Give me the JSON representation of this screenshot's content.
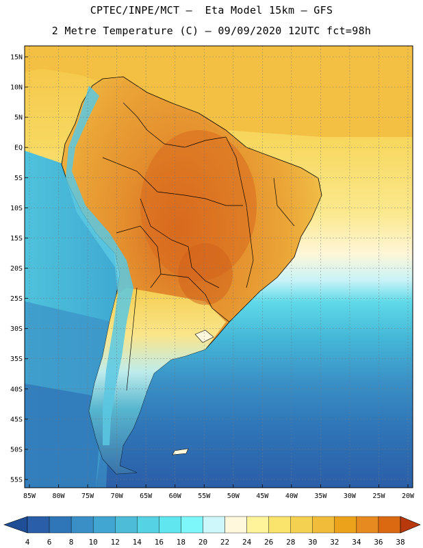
{
  "header": {
    "line1": "CPTEC/INPE/MCT –  Eta Model 15km – GFS",
    "line2": "2 Metre Temperature (C) – 09/09/2020 12UTC fct=98h"
  },
  "map": {
    "lat_labels": [
      "15N",
      "10N",
      "5N",
      "EQ",
      "5S",
      "10S",
      "15S",
      "20S",
      "25S",
      "30S",
      "35S",
      "40S",
      "45S",
      "50S",
      "55S"
    ],
    "lon_labels": [
      "85W",
      "80W",
      "75W",
      "70W",
      "65W",
      "60W",
      "55W",
      "50W",
      "45W",
      "40W",
      "35W",
      "30W",
      "25W",
      "20W"
    ],
    "colors": {
      "ocean_cold": "#2f6fb0",
      "ocean_mid": "#4fb6d6",
      "ocean_warm": "#f0d25a",
      "land_hot": "#e08a2c",
      "land_very_hot": "#d66f22",
      "andes": "#58c4e0"
    }
  },
  "colorbar": {
    "labels": [
      "4",
      "6",
      "8",
      "10",
      "12",
      "14",
      "16",
      "18",
      "20",
      "22",
      "24",
      "26",
      "28",
      "30",
      "32",
      "34",
      "36",
      "38"
    ],
    "colors": [
      "#2b5ea8",
      "#2f76b8",
      "#3a90c6",
      "#42a6d2",
      "#4cbcd9",
      "#55d2e4",
      "#5fe6ee",
      "#7ef7fb",
      "#cdf7fb",
      "#fff8dd",
      "#fff49a",
      "#fbe46c",
      "#f5d152",
      "#f0bc3a",
      "#eda21b",
      "#e78a20",
      "#db6912",
      "#c8480a",
      "#b8390b",
      "#1f4e96"
    ]
  }
}
